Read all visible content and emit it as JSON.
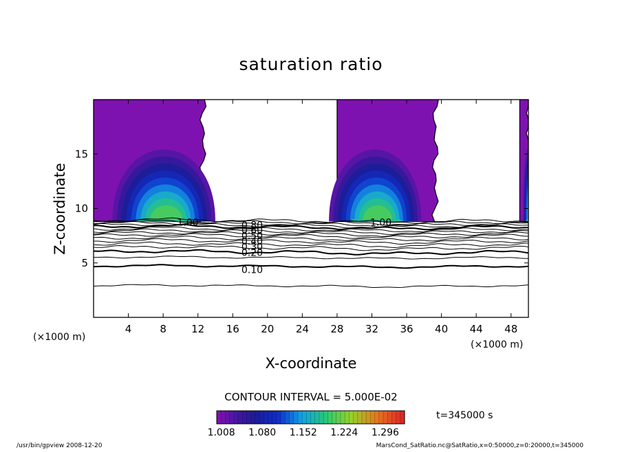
{
  "chart_data": {
    "type": "heatmap",
    "title": "saturation ratio",
    "xlabel": "X-coordinate",
    "ylabel": "Z-coordinate",
    "x_unit_left": "(×1000 m)",
    "x_unit_right": "(×1000 m)",
    "xlim": [
      0,
      50
    ],
    "ylim": [
      0,
      20
    ],
    "x_ticks": [
      4,
      8,
      12,
      16,
      20,
      24,
      28,
      32,
      36,
      40,
      44,
      48
    ],
    "y_ticks": [
      5,
      10,
      15
    ],
    "contour_interval_label": "CONTOUR INTERVAL = 5.000E-02",
    "time_label": "t=345000 s",
    "colorbar": {
      "min": 1.0,
      "max": 1.33,
      "tick_values": [
        1.008,
        1.08,
        1.152,
        1.224,
        1.296
      ],
      "tick_labels": [
        "1.008",
        "1.080",
        "1.152",
        "1.224",
        "1.296"
      ]
    },
    "contour_labels": [
      {
        "text": "1.00",
        "x": 9.6,
        "z": 8.75
      },
      {
        "text": "1.00",
        "x": 31.8,
        "z": 8.75
      },
      {
        "text": "0.80",
        "x": 17.0,
        "z": 8.5
      },
      {
        "text": "0.60",
        "x": 17.0,
        "z": 8.0
      },
      {
        "text": "0.50",
        "x": 17.0,
        "z": 7.5
      },
      {
        "text": "0.40",
        "x": 17.0,
        "z": 7.0
      },
      {
        "text": "0.30",
        "x": 17.0,
        "z": 6.5
      },
      {
        "text": "0.20",
        "x": 17.0,
        "z": 5.95
      },
      {
        "text": "0.10",
        "x": 17.0,
        "z": 4.4
      }
    ],
    "contour_levels_z": [
      8.9,
      8.75,
      8.6,
      8.45,
      8.3,
      8.1,
      7.9,
      7.7,
      7.5,
      7.25,
      7.0,
      6.7,
      6.4,
      6.0,
      5.5,
      4.7,
      2.9
    ],
    "emphasized_levels_z": [
      8.3,
      6.0,
      4.7
    ],
    "supersaturated_regions": [
      {
        "x_start": 0.0,
        "x_end": 12.6,
        "core_x": 8.2
      },
      {
        "x_start": 28.0,
        "x_end": 39.3,
        "core_x": 32.5
      },
      {
        "x_start": 49.0,
        "x_end": 50.0,
        "core_x": 50.0
      }
    ],
    "supersaturation_base_z": 8.8
  },
  "footer": {
    "left": "/usr/bin/gpview   2008-12-20",
    "right": "MarsCond_SatRatio.nc@SatRatio,x=0:50000,z=0:20000,t=345000"
  }
}
